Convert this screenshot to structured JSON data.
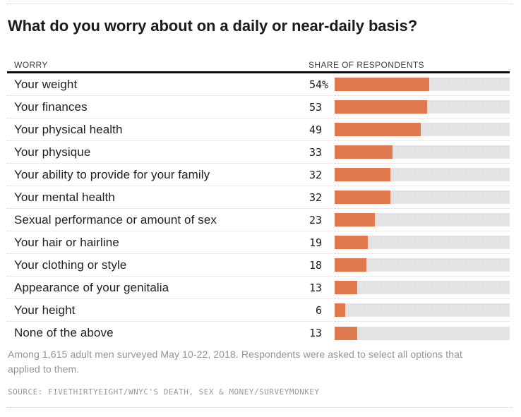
{
  "table": {
    "col_left": "WORRY",
    "col_right": "SHARE OF RESPONDENTS"
  },
  "footer": {
    "note": "Among 1,615 adult men surveyed May 10-22, 2018. Respondents were asked to select all options that applied to them.",
    "source": "SOURCE: FIVETHIRTYEIGHT/WNYC'S DEATH, SEX & MONEY/SURVEYMONKEY"
  },
  "colors": {
    "bar_orange": "#e0794d",
    "bar_track_gray": "#e4e4e4",
    "header_rule_black": "#0d0d0d"
  },
  "chart_data": {
    "type": "bar",
    "orientation": "horizontal",
    "title": "What do you worry about on a daily or near-daily basis?",
    "categories": [
      "Your weight",
      "Your finances",
      "Your physical health",
      "Your physique",
      "Your ability to provide for your family",
      "Your mental health",
      "Sexual performance or amount of sex",
      "Your hair or hairline",
      "Your clothing or style",
      "Appearance of your genitalia",
      "Your height",
      "None of the above"
    ],
    "values": [
      54,
      53,
      49,
      33,
      32,
      32,
      23,
      19,
      18,
      13,
      6,
      13
    ],
    "value_labels": [
      "54%",
      "53",
      "49",
      "33",
      "32",
      "32",
      "23",
      "19",
      "18",
      "13",
      "6",
      "13"
    ],
    "xlabel": "SHARE OF RESPONDENTS",
    "ylabel": "WORRY",
    "xlim": [
      0,
      100
    ],
    "grid": false,
    "legend": false
  }
}
